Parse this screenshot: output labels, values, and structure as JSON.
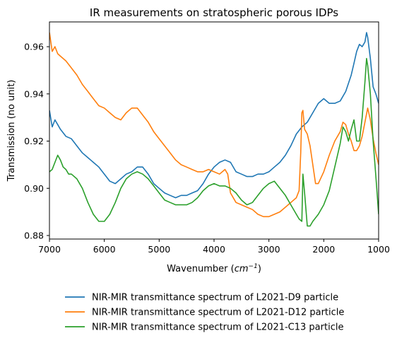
{
  "chart_data": {
    "type": "line",
    "title": "IR measurements on stratospheric porous IDPs",
    "xlabel_main": "Wavenumber (",
    "xlabel_unit_base": "cm",
    "xlabel_unit_exp": "−1",
    "xlabel_close": ")",
    "ylabel": "Transmission (no unit)",
    "xlim": [
      7000,
      1000
    ],
    "ylim": [
      0.8785,
      0.9705
    ],
    "x_ticks": [
      7000,
      6000,
      5000,
      4000,
      3000,
      2000,
      1000
    ],
    "y_ticks": [
      0.88,
      0.9,
      0.92,
      0.94,
      0.96
    ],
    "y_tick_labels": [
      "0.88",
      "0.90",
      "0.92",
      "0.94",
      "0.96"
    ],
    "grid": false,
    "legend_placement": "below",
    "series": [
      {
        "name": "NIR-MIR transmittance spectrum of L2021-D9 particle",
        "color": "#1f77b4",
        "points": [
          [
            7000,
            0.933
          ],
          [
            6950,
            0.926
          ],
          [
            6900,
            0.929
          ],
          [
            6850,
            0.927
          ],
          [
            6800,
            0.925
          ],
          [
            6700,
            0.922
          ],
          [
            6600,
            0.921
          ],
          [
            6500,
            0.918
          ],
          [
            6400,
            0.915
          ],
          [
            6300,
            0.913
          ],
          [
            6200,
            0.911
          ],
          [
            6100,
            0.909
          ],
          [
            6000,
            0.906
          ],
          [
            5900,
            0.903
          ],
          [
            5800,
            0.902
          ],
          [
            5700,
            0.904
          ],
          [
            5600,
            0.906
          ],
          [
            5500,
            0.907
          ],
          [
            5400,
            0.909
          ],
          [
            5300,
            0.909
          ],
          [
            5200,
            0.906
          ],
          [
            5100,
            0.902
          ],
          [
            5000,
            0.9
          ],
          [
            4900,
            0.898
          ],
          [
            4800,
            0.897
          ],
          [
            4700,
            0.896
          ],
          [
            4600,
            0.897
          ],
          [
            4500,
            0.897
          ],
          [
            4400,
            0.898
          ],
          [
            4300,
            0.899
          ],
          [
            4200,
            0.902
          ],
          [
            4100,
            0.906
          ],
          [
            4000,
            0.909
          ],
          [
            3900,
            0.911
          ],
          [
            3800,
            0.912
          ],
          [
            3700,
            0.911
          ],
          [
            3600,
            0.907
          ],
          [
            3500,
            0.906
          ],
          [
            3400,
            0.905
          ],
          [
            3300,
            0.905
          ],
          [
            3200,
            0.906
          ],
          [
            3100,
            0.906
          ],
          [
            3000,
            0.907
          ],
          [
            2900,
            0.909
          ],
          [
            2800,
            0.911
          ],
          [
            2700,
            0.914
          ],
          [
            2600,
            0.918
          ],
          [
            2500,
            0.923
          ],
          [
            2400,
            0.926
          ],
          [
            2300,
            0.928
          ],
          [
            2200,
            0.932
          ],
          [
            2100,
            0.936
          ],
          [
            2000,
            0.938
          ],
          [
            1900,
            0.936
          ],
          [
            1800,
            0.936
          ],
          [
            1700,
            0.937
          ],
          [
            1600,
            0.941
          ],
          [
            1500,
            0.948
          ],
          [
            1450,
            0.953
          ],
          [
            1400,
            0.958
          ],
          [
            1350,
            0.961
          ],
          [
            1300,
            0.96
          ],
          [
            1250,
            0.962
          ],
          [
            1220,
            0.966
          ],
          [
            1200,
            0.964
          ],
          [
            1150,
            0.955
          ],
          [
            1100,
            0.943
          ],
          [
            1050,
            0.94
          ],
          [
            1000,
            0.936
          ]
        ]
      },
      {
        "name": "NIR-MIR transmittance spectrum of L2021-D12 particle",
        "color": "#ff7f0e",
        "points": [
          [
            7000,
            0.966
          ],
          [
            6950,
            0.958
          ],
          [
            6900,
            0.96
          ],
          [
            6850,
            0.957
          ],
          [
            6800,
            0.956
          ],
          [
            6700,
            0.954
          ],
          [
            6600,
            0.951
          ],
          [
            6500,
            0.948
          ],
          [
            6400,
            0.944
          ],
          [
            6300,
            0.941
          ],
          [
            6200,
            0.938
          ],
          [
            6100,
            0.935
          ],
          [
            6000,
            0.934
          ],
          [
            5900,
            0.932
          ],
          [
            5800,
            0.93
          ],
          [
            5700,
            0.929
          ],
          [
            5600,
            0.932
          ],
          [
            5500,
            0.934
          ],
          [
            5400,
            0.934
          ],
          [
            5300,
            0.931
          ],
          [
            5200,
            0.928
          ],
          [
            5100,
            0.924
          ],
          [
            5000,
            0.921
          ],
          [
            4900,
            0.918
          ],
          [
            4800,
            0.915
          ],
          [
            4700,
            0.912
          ],
          [
            4600,
            0.91
          ],
          [
            4500,
            0.909
          ],
          [
            4400,
            0.908
          ],
          [
            4300,
            0.907
          ],
          [
            4200,
            0.907
          ],
          [
            4100,
            0.908
          ],
          [
            4000,
            0.907
          ],
          [
            3900,
            0.906
          ],
          [
            3800,
            0.908
          ],
          [
            3750,
            0.906
          ],
          [
            3700,
            0.898
          ],
          [
            3600,
            0.894
          ],
          [
            3500,
            0.893
          ],
          [
            3400,
            0.892
          ],
          [
            3300,
            0.891
          ],
          [
            3200,
            0.889
          ],
          [
            3100,
            0.888
          ],
          [
            3000,
            0.888
          ],
          [
            2900,
            0.889
          ],
          [
            2800,
            0.89
          ],
          [
            2700,
            0.892
          ],
          [
            2600,
            0.894
          ],
          [
            2500,
            0.896
          ],
          [
            2450,
            0.899
          ],
          [
            2420,
            0.915
          ],
          [
            2400,
            0.932
          ],
          [
            2380,
            0.933
          ],
          [
            2350,
            0.925
          ],
          [
            2300,
            0.923
          ],
          [
            2250,
            0.918
          ],
          [
            2200,
            0.91
          ],
          [
            2150,
            0.902
          ],
          [
            2100,
            0.902
          ],
          [
            2000,
            0.907
          ],
          [
            1900,
            0.914
          ],
          [
            1800,
            0.92
          ],
          [
            1700,
            0.924
          ],
          [
            1650,
            0.928
          ],
          [
            1600,
            0.927
          ],
          [
            1550,
            0.923
          ],
          [
            1500,
            0.92
          ],
          [
            1450,
            0.916
          ],
          [
            1400,
            0.916
          ],
          [
            1350,
            0.918
          ],
          [
            1300,
            0.922
          ],
          [
            1250,
            0.928
          ],
          [
            1200,
            0.934
          ],
          [
            1150,
            0.929
          ],
          [
            1100,
            0.921
          ],
          [
            1050,
            0.915
          ],
          [
            1000,
            0.91
          ]
        ]
      },
      {
        "name": "NIR-MIR transmittance spectrum of L2021-C13 particle",
        "color": "#2ca02c",
        "points": [
          [
            7000,
            0.907
          ],
          [
            6950,
            0.908
          ],
          [
            6900,
            0.911
          ],
          [
            6850,
            0.914
          ],
          [
            6800,
            0.912
          ],
          [
            6750,
            0.909
          ],
          [
            6700,
            0.908
          ],
          [
            6650,
            0.906
          ],
          [
            6600,
            0.906
          ],
          [
            6500,
            0.904
          ],
          [
            6400,
            0.9
          ],
          [
            6300,
            0.894
          ],
          [
            6200,
            0.889
          ],
          [
            6100,
            0.886
          ],
          [
            6000,
            0.886
          ],
          [
            5900,
            0.889
          ],
          [
            5800,
            0.894
          ],
          [
            5700,
            0.9
          ],
          [
            5600,
            0.904
          ],
          [
            5500,
            0.906
          ],
          [
            5400,
            0.907
          ],
          [
            5300,
            0.906
          ],
          [
            5200,
            0.904
          ],
          [
            5100,
            0.901
          ],
          [
            5000,
            0.898
          ],
          [
            4900,
            0.895
          ],
          [
            4800,
            0.894
          ],
          [
            4700,
            0.893
          ],
          [
            4600,
            0.893
          ],
          [
            4500,
            0.893
          ],
          [
            4400,
            0.894
          ],
          [
            4300,
            0.896
          ],
          [
            4200,
            0.899
          ],
          [
            4100,
            0.901
          ],
          [
            4000,
            0.902
          ],
          [
            3900,
            0.901
          ],
          [
            3800,
            0.901
          ],
          [
            3700,
            0.9
          ],
          [
            3600,
            0.898
          ],
          [
            3500,
            0.895
          ],
          [
            3400,
            0.893
          ],
          [
            3300,
            0.894
          ],
          [
            3200,
            0.897
          ],
          [
            3100,
            0.9
          ],
          [
            3000,
            0.902
          ],
          [
            2900,
            0.903
          ],
          [
            2800,
            0.9
          ],
          [
            2700,
            0.897
          ],
          [
            2600,
            0.893
          ],
          [
            2500,
            0.889
          ],
          [
            2450,
            0.887
          ],
          [
            2400,
            0.886
          ],
          [
            2380,
            0.906
          ],
          [
            2350,
            0.898
          ],
          [
            2300,
            0.884
          ],
          [
            2250,
            0.884
          ],
          [
            2200,
            0.886
          ],
          [
            2100,
            0.889
          ],
          [
            2000,
            0.893
          ],
          [
            1900,
            0.899
          ],
          [
            1800,
            0.909
          ],
          [
            1700,
            0.919
          ],
          [
            1650,
            0.926
          ],
          [
            1600,
            0.924
          ],
          [
            1550,
            0.92
          ],
          [
            1500,
            0.925
          ],
          [
            1450,
            0.929
          ],
          [
            1400,
            0.92
          ],
          [
            1350,
            0.92
          ],
          [
            1300,
            0.93
          ],
          [
            1250,
            0.945
          ],
          [
            1220,
            0.955
          ],
          [
            1200,
            0.952
          ],
          [
            1150,
            0.94
          ],
          [
            1100,
            0.92
          ],
          [
            1050,
            0.905
          ],
          [
            1000,
            0.889
          ]
        ]
      }
    ]
  }
}
